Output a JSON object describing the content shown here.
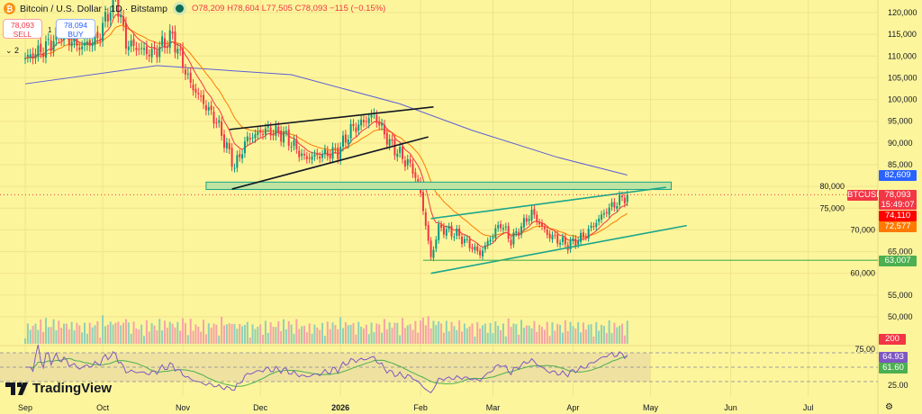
{
  "header": {
    "symbol": "Bitcoin / U.S. Dollar · 1D · Bitstamp",
    "logo": "bitcoin-icon",
    "open": "O78,209",
    "high": "H78,604",
    "low": "L77,505",
    "close": "C78,093",
    "change": "−115 (−0.15%)"
  },
  "trade": {
    "sell_price": "78,093",
    "sell_label": "SELL",
    "spread": "1",
    "buy_price": "78,094",
    "buy_label": "BUY",
    "collapse": "2"
  },
  "branding": "TradingView",
  "labels": {
    "ma200": {
      "value": "82,609",
      "color": "#2962ff"
    },
    "symbol_tag": "BTCUSD",
    "last": {
      "value": "78,093",
      "countdown": "15:49:07",
      "color": "#f23645"
    },
    "ema_fast": {
      "value": "74,110",
      "color": "#ff0000"
    },
    "ema_slow": {
      "value": "72,577",
      "color": "#ff7a00"
    },
    "hline": {
      "value": "63,007",
      "color": "#4caf50"
    },
    "volume": {
      "value": "200",
      "color": "#f23645"
    },
    "rsi": {
      "value": "64.93",
      "color": "#7e57c2"
    },
    "rsi_ma": {
      "value": "61.60",
      "color": "#4caf50"
    }
  },
  "chart_data": {
    "type": "candlestick",
    "x_ticks": [
      "Sep",
      "Oct",
      "Nov",
      "Dec",
      "2026",
      "Feb",
      "Mar",
      "Apr",
      "May",
      "Jun",
      "Jul"
    ],
    "y_ticks": [
      "120,000",
      "115,000",
      "110,000",
      "105,000",
      "100,000",
      "95,000",
      "90,000",
      "85,000",
      "80,000",
      "75,000",
      "70,000",
      "65,000",
      "60,000",
      "55,000",
      "50,000"
    ],
    "ylim": [
      50000,
      120000
    ],
    "rsi_ticks": [
      "75.00",
      "25.00"
    ],
    "closes": [
      [
        "2025-09-01",
        109500
      ],
      [
        "2025-09-08",
        111500
      ],
      [
        "2025-09-15",
        115500
      ],
      [
        "2025-09-22",
        112000
      ],
      [
        "2025-09-29",
        114000
      ],
      [
        "2025-10-06",
        124000
      ],
      [
        "2025-10-10",
        113000
      ],
      [
        "2025-10-20",
        110500
      ],
      [
        "2025-10-28",
        114500
      ],
      [
        "2025-11-04",
        103500
      ],
      [
        "2025-11-14",
        95000
      ],
      [
        "2025-11-21",
        84500
      ],
      [
        "2025-11-26",
        91000
      ],
      [
        "2025-12-03",
        93000
      ],
      [
        "2025-12-10",
        92000
      ],
      [
        "2025-12-18",
        86500
      ],
      [
        "2025-12-31",
        88000
      ],
      [
        "2026-01-05",
        93000
      ],
      [
        "2026-01-14",
        96500
      ],
      [
        "2026-01-20",
        90000
      ],
      [
        "2026-01-29",
        84000
      ],
      [
        "2026-02-01",
        78500
      ],
      [
        "2026-02-05",
        63500
      ],
      [
        "2026-02-08",
        70500
      ],
      [
        "2026-02-15",
        69000
      ],
      [
        "2026-02-24",
        64500
      ],
      [
        "2026-03-04",
        71500
      ],
      [
        "2026-03-08",
        67500
      ],
      [
        "2026-03-16",
        74000
      ],
      [
        "2026-03-22",
        69000
      ],
      [
        "2026-03-30",
        66500
      ],
      [
        "2026-04-05",
        68500
      ],
      [
        "2026-04-14",
        74500
      ],
      [
        "2026-04-22",
        78093
      ]
    ],
    "ma200": [
      [
        "2025-09-01",
        103600
      ],
      [
        "2025-10-22",
        107800
      ],
      [
        "2025-12-13",
        105700
      ],
      [
        "2026-01-24",
        99000
      ],
      [
        "2026-02-21",
        92900
      ],
      [
        "2026-03-26",
        86700
      ],
      [
        "2026-04-22",
        82609
      ]
    ],
    "drawings": {
      "wedge1_upper": [
        [
          "2025-11-19",
          93100
        ],
        [
          "2026-02-06",
          98300
        ]
      ],
      "wedge1_lower": [
        [
          "2025-11-20",
          79400
        ],
        [
          "2026-02-04",
          91400
        ]
      ],
      "zone": {
        "from": "2025-11-10",
        "to": "2026-05-09",
        "top": 81000,
        "bottom": 79300
      },
      "wedge2_upper": [
        [
          "2026-02-05",
          72600
        ],
        [
          "2026-05-07",
          79800
        ]
      ],
      "wedge2_lower": [
        [
          "2026-02-05",
          60000
        ],
        [
          "2026-05-15",
          71000
        ]
      ],
      "hline": {
        "from": "2026-02-02",
        "price": 63007
      }
    },
    "up_color": "#089981",
    "down_color": "#f23645"
  }
}
